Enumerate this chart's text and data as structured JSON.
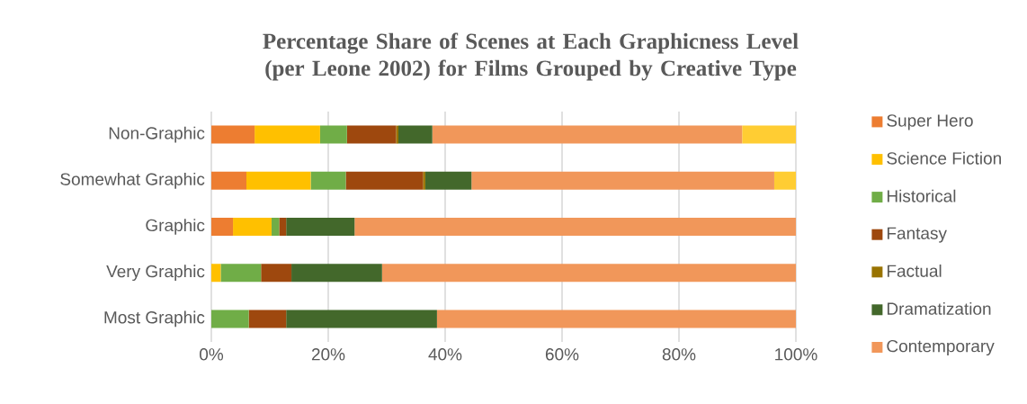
{
  "chart_data": {
    "type": "bar",
    "orientation": "horizontal",
    "stacked": true,
    "title": "Percentage Share of Scenes at Each Graphicness Level (per Leone 2002) for Films Grouped by Creative Type",
    "categories": [
      "Non-Graphic",
      "Somewhat Graphic",
      "Graphic",
      "Very Graphic",
      "Most Graphic"
    ],
    "series": [
      {
        "name": "Super Hero",
        "color": "#ed7d31",
        "values": [
          7.4,
          6.0,
          3.7,
          0,
          0
        ]
      },
      {
        "name": "Science Fiction",
        "color": "#ffc000",
        "values": [
          11.2,
          11.0,
          6.6,
          1.6,
          0
        ]
      },
      {
        "name": "Historical",
        "color": "#70ad47",
        "values": [
          4.6,
          6.0,
          1.3,
          6.9,
          6.4
        ]
      },
      {
        "name": "Fantasy",
        "color": "#9e480e",
        "values": [
          8.4,
          13.2,
          1.2,
          5.2,
          6.4
        ]
      },
      {
        "name": "Factual",
        "color": "#997300",
        "values": [
          0.4,
          0.4,
          0,
          0,
          0
        ]
      },
      {
        "name": "Dramatization",
        "color": "#43682b",
        "values": [
          5.8,
          7.9,
          11.7,
          15.5,
          25.8
        ]
      },
      {
        "name": "Contemporary",
        "color": "#f1975a",
        "values": [
          53.0,
          51.8,
          75.5,
          70.8,
          61.4
        ]
      },
      {
        "color": "#ffcd33",
        "values": [
          9.2,
          3.7,
          0,
          0,
          0
        ]
      }
    ],
    "xlim": [
      0,
      100
    ],
    "xticks": [
      {
        "value": 0,
        "label": "0%"
      },
      {
        "value": 20,
        "label": "20%"
      },
      {
        "value": 40,
        "label": "40%"
      },
      {
        "value": 60,
        "label": "60%"
      },
      {
        "value": 80,
        "label": "80%"
      },
      {
        "value": 100,
        "label": "100%"
      }
    ],
    "grid": "x",
    "legend": "right"
  }
}
